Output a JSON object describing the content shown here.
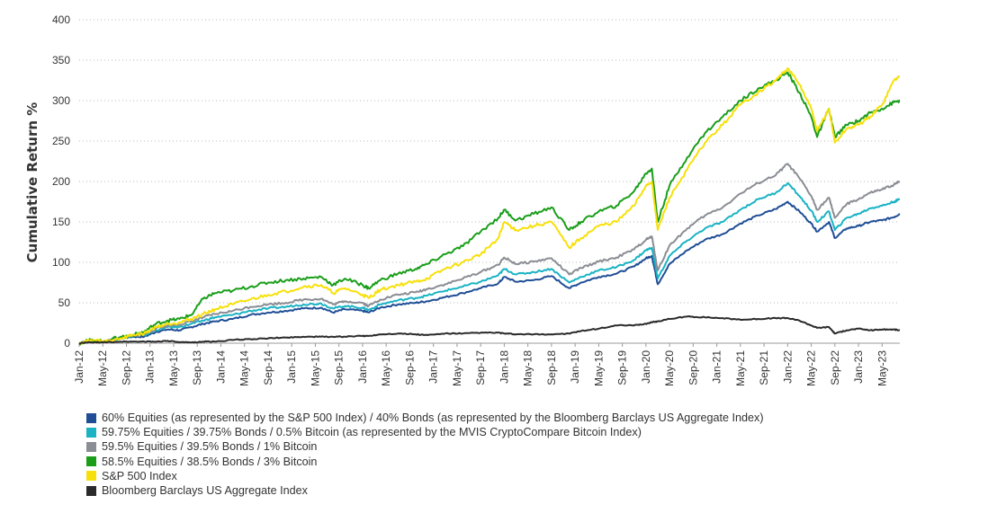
{
  "chart_data": {
    "type": "line",
    "ylabel": "Cumulative Return %",
    "xlabel": "",
    "ylim": [
      0,
      400
    ],
    "y_ticks": [
      0,
      50,
      100,
      150,
      200,
      250,
      300,
      350,
      400
    ],
    "x_ticks": [
      "Jan-12",
      "May-12",
      "Sep-12",
      "Jan-13",
      "May-13",
      "Sep-13",
      "Jan-14",
      "May-14",
      "Sep-14",
      "Jan-15",
      "May-15",
      "Sep-15",
      "Jan-16",
      "May-16",
      "Sep-16",
      "Jan-17",
      "May-17",
      "Sep-17",
      "Jan-18",
      "May-18",
      "Sep-18",
      "Jan-19",
      "May-19",
      "Sep-19",
      "Jan-20",
      "May-20",
      "Sep-20",
      "Jan-21",
      "May-21",
      "Sep-21",
      "Jan-22",
      "May-22",
      "Sep-22",
      "Jan-23",
      "May-23"
    ],
    "x_range": [
      "2012-01",
      "2023-08"
    ],
    "grid": "horizontal-dotted",
    "legend_position": "bottom",
    "x": [
      "2012-01",
      "2012-03",
      "2012-05",
      "2012-08",
      "2012-10",
      "2012-12",
      "2013-02",
      "2013-04",
      "2013-06",
      "2013-08",
      "2013-10",
      "2013-12",
      "2014-03",
      "2014-06",
      "2014-09",
      "2014-12",
      "2015-03",
      "2015-06",
      "2015-08",
      "2015-10",
      "2016-01",
      "2016-02",
      "2016-04",
      "2016-07",
      "2016-10",
      "2016-12",
      "2017-03",
      "2017-06",
      "2017-09",
      "2017-12",
      "2018-01",
      "2018-03",
      "2018-06",
      "2018-09",
      "2018-12",
      "2019-02",
      "2019-05",
      "2019-08",
      "2019-11",
      "2020-01",
      "2020-02",
      "2020-03",
      "2020-05",
      "2020-08",
      "2020-11",
      "2021-02",
      "2021-05",
      "2021-08",
      "2021-11",
      "2022-01",
      "2022-03",
      "2022-05",
      "2022-06",
      "2022-08",
      "2022-09",
      "2022-11",
      "2023-01",
      "2023-03",
      "2023-05",
      "2023-07",
      "2023-08"
    ],
    "series": [
      {
        "name": "60% Equities (as represented by the S&P 500 Index) / 40% Bonds (as represented by the Bloomberg Barclays US Aggregate Index)",
        "color": "#1f4e96",
        "values": [
          0,
          3,
          2,
          6,
          8,
          8,
          14,
          17,
          16,
          20,
          24,
          27,
          30,
          35,
          38,
          40,
          43,
          44,
          38,
          42,
          40,
          38,
          44,
          48,
          50,
          52,
          57,
          62,
          68,
          74,
          82,
          76,
          78,
          83,
          68,
          75,
          82,
          86,
          95,
          105,
          108,
          73,
          98,
          115,
          128,
          135,
          148,
          158,
          166,
          175,
          163,
          148,
          138,
          150,
          130,
          142,
          145,
          150,
          152,
          156,
          160
        ]
      },
      {
        "name": "59.75% Equities / 39.75% Bonds / 0.5% Bitcoin (as represented by the MVIS CryptoCompare Bitcoin Index)",
        "color": "#1ab3c4",
        "values": [
          0,
          3,
          2,
          6,
          9,
          10,
          16,
          20,
          20,
          24,
          28,
          32,
          35,
          40,
          43,
          45,
          48,
          49,
          43,
          46,
          44,
          41,
          48,
          53,
          56,
          59,
          65,
          70,
          76,
          84,
          92,
          85,
          88,
          92,
          75,
          82,
          90,
          94,
          103,
          115,
          118,
          80,
          108,
          127,
          142,
          150,
          165,
          178,
          186,
          198,
          182,
          164,
          150,
          163,
          140,
          155,
          160,
          167,
          170,
          175,
          178
        ]
      },
      {
        "name": "59.5% Equities / 39.5% Bonds / 1% Bitcoin",
        "color": "#8a8d93",
        "values": [
          0,
          3,
          2,
          6,
          9,
          11,
          18,
          22,
          23,
          27,
          32,
          36,
          40,
          45,
          48,
          50,
          54,
          55,
          48,
          52,
          50,
          46,
          54,
          60,
          63,
          67,
          73,
          80,
          88,
          97,
          106,
          98,
          101,
          105,
          85,
          93,
          101,
          106,
          116,
          128,
          132,
          90,
          121,
          142,
          158,
          168,
          185,
          198,
          208,
          222,
          204,
          182,
          165,
          180,
          155,
          172,
          178,
          186,
          190,
          196,
          200
        ]
      },
      {
        "name": "58.5% Equities / 38.5% Bonds / 3% Bitcoin",
        "color": "#1a9e1a",
        "values": [
          0,
          4,
          2,
          8,
          10,
          14,
          24,
          28,
          30,
          35,
          55,
          62,
          65,
          70,
          75,
          78,
          80,
          82,
          72,
          80,
          72,
          68,
          78,
          86,
          92,
          98,
          110,
          120,
          138,
          155,
          165,
          152,
          160,
          168,
          140,
          150,
          163,
          170,
          188,
          210,
          216,
          150,
          195,
          230,
          260,
          280,
          300,
          315,
          325,
          335,
          310,
          280,
          255,
          290,
          255,
          270,
          275,
          285,
          290,
          298,
          300
        ]
      },
      {
        "name": "S&P 500 Index",
        "color": "#f7e00a",
        "values": [
          0,
          4,
          2,
          6,
          10,
          12,
          20,
          24,
          26,
          30,
          36,
          42,
          48,
          54,
          60,
          64,
          70,
          72,
          62,
          68,
          60,
          56,
          66,
          72,
          76,
          80,
          92,
          100,
          110,
          130,
          150,
          140,
          145,
          150,
          118,
          130,
          145,
          150,
          170,
          195,
          200,
          140,
          180,
          215,
          248,
          270,
          295,
          310,
          325,
          340,
          320,
          290,
          262,
          290,
          248,
          265,
          270,
          280,
          295,
          325,
          330
        ]
      },
      {
        "name": "Bloomberg Barclays US Aggregate Index",
        "color": "#2a2a2a",
        "values": [
          0,
          1,
          1,
          2,
          2,
          2,
          2,
          3,
          1,
          1,
          2,
          2,
          4,
          5,
          6,
          7,
          8,
          8,
          8,
          8,
          9,
          9,
          11,
          12,
          11,
          10,
          12,
          12,
          13,
          13,
          12,
          11,
          11,
          11,
          12,
          15,
          18,
          22,
          22,
          24,
          26,
          27,
          30,
          33,
          32,
          31,
          29,
          30,
          31,
          31,
          28,
          22,
          19,
          20,
          12,
          16,
          18,
          16,
          17,
          17,
          16
        ]
      }
    ]
  }
}
